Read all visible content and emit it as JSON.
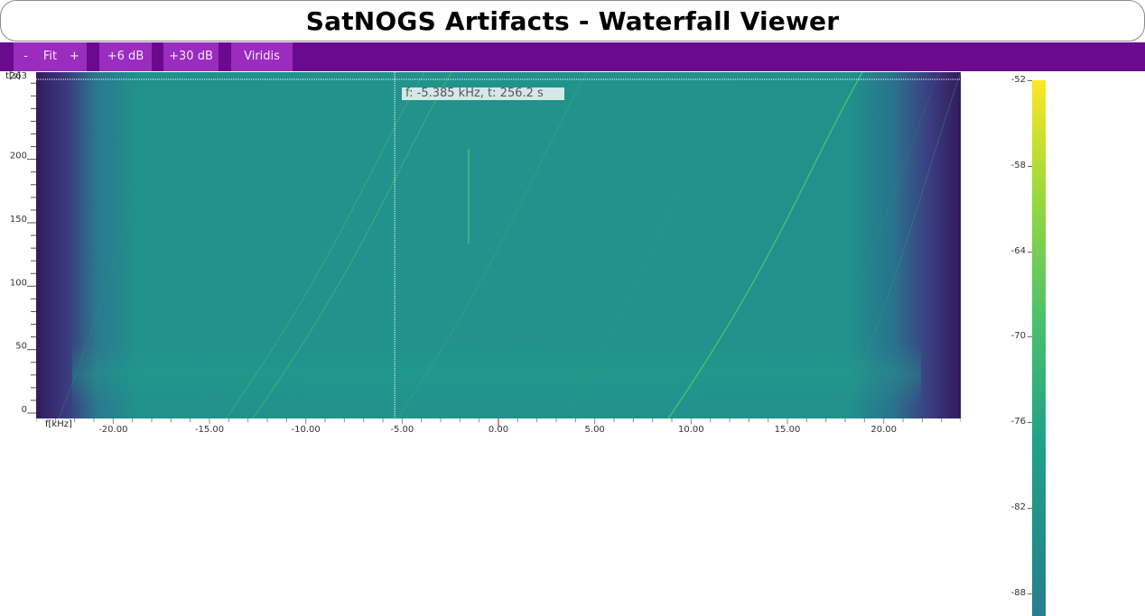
{
  "header": {
    "title": "SatNOGS Artifacts - Waterfall Viewer"
  },
  "toolbar": {
    "zoom_out_label": "-",
    "fit_label": "Fit",
    "zoom_in_label": "+",
    "db6_label": "+6 dB",
    "db30_label": "+30 dB",
    "colormap_label": "Viridis"
  },
  "waterfall": {
    "time_unit_label": "t[s]",
    "freq_unit_label": "f[kHz]",
    "time_ticks": [
      "0",
      "50",
      "100",
      "150",
      "200",
      "263"
    ],
    "time_tick_values": [
      0,
      50,
      100,
      150,
      200,
      263
    ],
    "time_range_s": [
      0,
      263
    ],
    "freq_ticks": [
      "-20.00",
      "-15.00",
      "-10.00",
      "-5.00",
      "0.00",
      "5.00",
      "10.00",
      "15.00",
      "20.00"
    ],
    "freq_tick_values": [
      -20,
      -15,
      -10,
      -5,
      0,
      5,
      10,
      15,
      20
    ],
    "freq_range_khz": [
      -24,
      24
    ],
    "cursor_readout": "f: -5.385 kHz, t: 256.2 s",
    "cursor_freq_khz": -5.385,
    "cursor_time_s": 256.2,
    "colormap": "viridis",
    "zero_marker_color": "#cc0000"
  },
  "colorbar": {
    "labels": [
      "-52",
      "-58",
      "-64",
      "-70",
      "-76",
      "-82",
      "-88"
    ],
    "values": [
      -52,
      -58,
      -64,
      -70,
      -76,
      -82,
      -88
    ],
    "colors": {
      "top": "#fde725",
      "upper": "#a0da39",
      "mid": "#4ac16d",
      "lowmid": "#1fa187",
      "low": "#277f8e"
    }
  }
}
